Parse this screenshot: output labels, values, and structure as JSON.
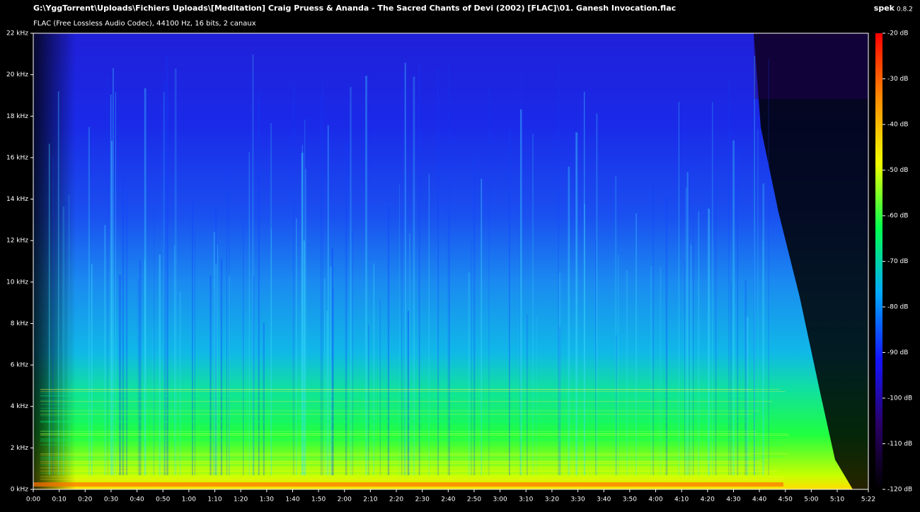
{
  "chart_data": {
    "type": "spectrogram",
    "title": "G:\\YggTorrent\\Uploads\\Fichiers Uploads\\[Meditation] Craig Pruess & Ananda - The Sacred Chants of Devi (2002) [FLAC]\\01. Ganesh Invocation.flac",
    "subtitle": "FLAC (Free Lossless Audio Codec), 44100 Hz, 16 bits, 2 canaux",
    "app_name": "spek",
    "app_version": "0.8.2",
    "xlim": [
      0,
      322
    ],
    "xticks": [
      {
        "value": 0,
        "label": "0:00"
      },
      {
        "value": 10,
        "label": "0:10"
      },
      {
        "value": 20,
        "label": "0:20"
      },
      {
        "value": 30,
        "label": "0:30"
      },
      {
        "value": 40,
        "label": "0:40"
      },
      {
        "value": 50,
        "label": "0:50"
      },
      {
        "value": 60,
        "label": "1:00"
      },
      {
        "value": 70,
        "label": "1:10"
      },
      {
        "value": 80,
        "label": "1:20"
      },
      {
        "value": 90,
        "label": "1:30"
      },
      {
        "value": 100,
        "label": "1:40"
      },
      {
        "value": 110,
        "label": "1:50"
      },
      {
        "value": 120,
        "label": "2:00"
      },
      {
        "value": 130,
        "label": "2:10"
      },
      {
        "value": 140,
        "label": "2:20"
      },
      {
        "value": 150,
        "label": "2:30"
      },
      {
        "value": 160,
        "label": "2:40"
      },
      {
        "value": 170,
        "label": "2:50"
      },
      {
        "value": 180,
        "label": "3:00"
      },
      {
        "value": 190,
        "label": "3:10"
      },
      {
        "value": 200,
        "label": "3:20"
      },
      {
        "value": 210,
        "label": "3:30"
      },
      {
        "value": 220,
        "label": "3:40"
      },
      {
        "value": 230,
        "label": "3:50"
      },
      {
        "value": 240,
        "label": "4:00"
      },
      {
        "value": 250,
        "label": "4:10"
      },
      {
        "value": 260,
        "label": "4:20"
      },
      {
        "value": 270,
        "label": "4:30"
      },
      {
        "value": 280,
        "label": "4:40"
      },
      {
        "value": 290,
        "label": "4:50"
      },
      {
        "value": 300,
        "label": "5:00"
      },
      {
        "value": 310,
        "label": "5:10"
      },
      {
        "value": 322,
        "label": "5:22"
      }
    ],
    "ylim": [
      0,
      22
    ],
    "yticks": [
      {
        "value": 0,
        "label": "0 kHz"
      },
      {
        "value": 2,
        "label": "2 kHz"
      },
      {
        "value": 4,
        "label": "4 kHz"
      },
      {
        "value": 6,
        "label": "6 kHz"
      },
      {
        "value": 8,
        "label": "8 kHz"
      },
      {
        "value": 10,
        "label": "10 kHz"
      },
      {
        "value": 12,
        "label": "12 kHz"
      },
      {
        "value": 14,
        "label": "14 kHz"
      },
      {
        "value": 16,
        "label": "16 kHz"
      },
      {
        "value": 18,
        "label": "18 kHz"
      },
      {
        "value": 20,
        "label": "20 kHz"
      },
      {
        "value": 22,
        "label": "22 kHz"
      }
    ],
    "colorbar_lim": [
      -120,
      -20
    ],
    "colorbar_ticks": [
      {
        "value": -20,
        "label": "-20 dB"
      },
      {
        "value": -30,
        "label": "-30 dB"
      },
      {
        "value": -40,
        "label": "-40 dB"
      },
      {
        "value": -50,
        "label": "-50 dB"
      },
      {
        "value": -60,
        "label": "-60 dB"
      },
      {
        "value": -70,
        "label": "-70 dB"
      },
      {
        "value": -80,
        "label": "-80 dB"
      },
      {
        "value": -90,
        "label": "-90 dB"
      },
      {
        "value": -100,
        "label": "-100 dB"
      },
      {
        "value": -110,
        "label": "-110 dB"
      },
      {
        "value": -120,
        "label": "-120 dB"
      }
    ],
    "colormap": [
      "#000000",
      "#2a0066",
      "#1414ff",
      "#00a8ff",
      "#00ff50",
      "#f0ff00",
      "#ff8c00",
      "#ff0000"
    ]
  }
}
